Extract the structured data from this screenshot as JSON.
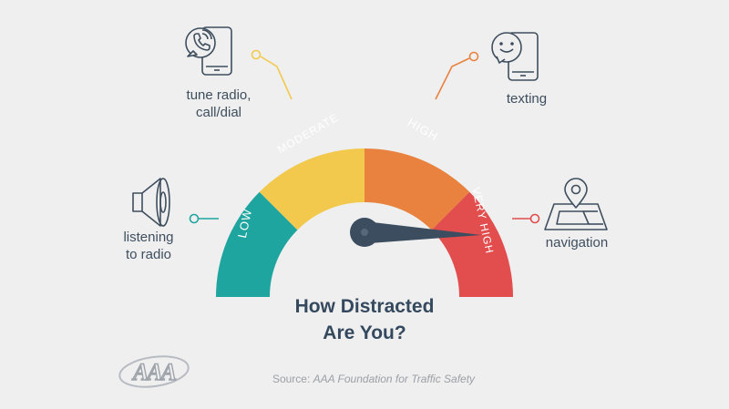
{
  "gauge": {
    "segments": [
      {
        "label": "LOW",
        "color": "#1fa59f"
      },
      {
        "label": "MODERATE",
        "color": "#f2c94c"
      },
      {
        "label": "HIGH",
        "color": "#e8823e"
      },
      {
        "label": "VERY HIGH",
        "color": "#e24d4e"
      }
    ],
    "needle_color": "#3b4d5f"
  },
  "activities": [
    {
      "label_lines": [
        "listening",
        "to radio"
      ],
      "icon": "speaker-icon",
      "level": "LOW"
    },
    {
      "label_lines": [
        "tune radio,",
        "call/dial"
      ],
      "icon": "phone-call-icon",
      "level": "MODERATE"
    },
    {
      "label_lines": [
        "texting"
      ],
      "icon": "phone-smiley-icon",
      "level": "HIGH"
    },
    {
      "label_lines": [
        "navigation"
      ],
      "icon": "map-pin-icon",
      "level": "VERY HIGH"
    }
  ],
  "title_lines": [
    "How Distracted",
    "Are You?"
  ],
  "source": {
    "prefix": "Source: ",
    "org": "AAA Foundation for Traffic Safety"
  },
  "logo_text": "AAA"
}
